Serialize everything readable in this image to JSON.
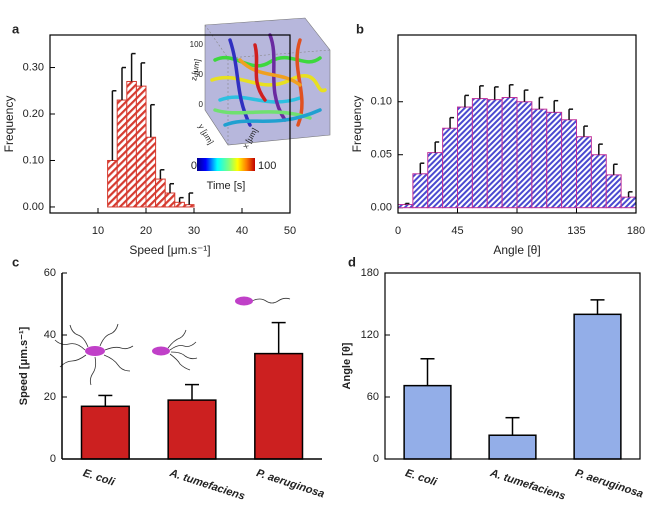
{
  "chart_data": [
    {
      "type": "histogram",
      "label": "a",
      "xlabel": "Speed [μm.s⁻¹]",
      "ylabel": "Frequency",
      "bins": [
        12,
        14,
        16,
        18,
        20,
        22,
        24,
        26,
        28,
        30
      ],
      "values": [
        0.1,
        0.23,
        0.27,
        0.26,
        0.15,
        0.06,
        0.03,
        0.01,
        0.005
      ],
      "errors": [
        0.15,
        0.07,
        0.06,
        0.05,
        0.07,
        0.02,
        0.02,
        0.01,
        0.025
      ],
      "color": "#d63a2f",
      "xlim": [
        0,
        50
      ],
      "xticks": [
        10,
        20,
        30,
        40,
        50
      ],
      "ylim": [
        -0.013,
        0.37
      ],
      "yticks": [
        {
          "value": 0,
          "label": "0.00"
        },
        {
          "value": 0.1,
          "label": "0.10"
        },
        {
          "value": 0.2,
          "label": "0.20"
        },
        {
          "value": 0.3,
          "label": "0.30"
        }
      ],
      "inset": {
        "colorbar_label": "Time [s]",
        "colorbar_lim": [
          0,
          100
        ],
        "z_label": "z [μm]",
        "y_label": "y [μm]",
        "x_label": "x [μm]",
        "z_ticks": [
          100,
          50,
          0
        ]
      }
    },
    {
      "type": "histogram",
      "label": "b",
      "xlabel": "Angle [θ]",
      "ylabel": "Frequency",
      "bins": [
        0,
        11.25,
        22.5,
        33.75,
        45,
        56.25,
        67.5,
        78.75,
        90,
        101.25,
        112.5,
        123.75,
        135,
        146.25,
        157.5,
        168.75,
        180
      ],
      "values": [
        0.003,
        0.032,
        0.052,
        0.075,
        0.095,
        0.103,
        0.102,
        0.104,
        0.1,
        0.093,
        0.09,
        0.083,
        0.067,
        0.05,
        0.031,
        0.01
      ],
      "errors": [
        0.001,
        0.01,
        0.01,
        0.01,
        0.011,
        0.012,
        0.012,
        0.012,
        0.011,
        0.011,
        0.011,
        0.01,
        0.01,
        0.01,
        0.01,
        0.005
      ],
      "color": "#4a4ad0",
      "xlim": [
        0,
        180
      ],
      "xticks": [
        0,
        45,
        90,
        135,
        180
      ],
      "ylim": [
        -0.005,
        0.163
      ],
      "yticks": [
        {
          "value": 0,
          "label": "0.00"
        },
        {
          "value": 0.05,
          "label": "0.05"
        },
        {
          "value": 0.1,
          "label": "0.10"
        }
      ]
    },
    {
      "type": "bar",
      "label": "c",
      "ylabel": "Speed [μm.s⁻¹]",
      "categories": [
        "E. coli",
        "A. tumefaciens",
        "P. aeruginosa"
      ],
      "values": [
        17,
        19,
        34
      ],
      "errors": [
        3.5,
        5,
        10
      ],
      "color": "#cc2020",
      "ylim": [
        0,
        60
      ],
      "yticks": [
        0,
        20,
        40,
        60
      ]
    },
    {
      "type": "bar",
      "label": "d",
      "ylabel": "Angle [θ]",
      "categories": [
        "E. coli",
        "A. tumefaciens",
        "P. aeruginosa"
      ],
      "values": [
        71,
        23,
        140
      ],
      "errors": [
        26,
        17,
        14
      ],
      "color": "#93aee8",
      "ylim": [
        0,
        180
      ],
      "yticks": [
        0,
        60,
        120,
        180
      ]
    }
  ]
}
